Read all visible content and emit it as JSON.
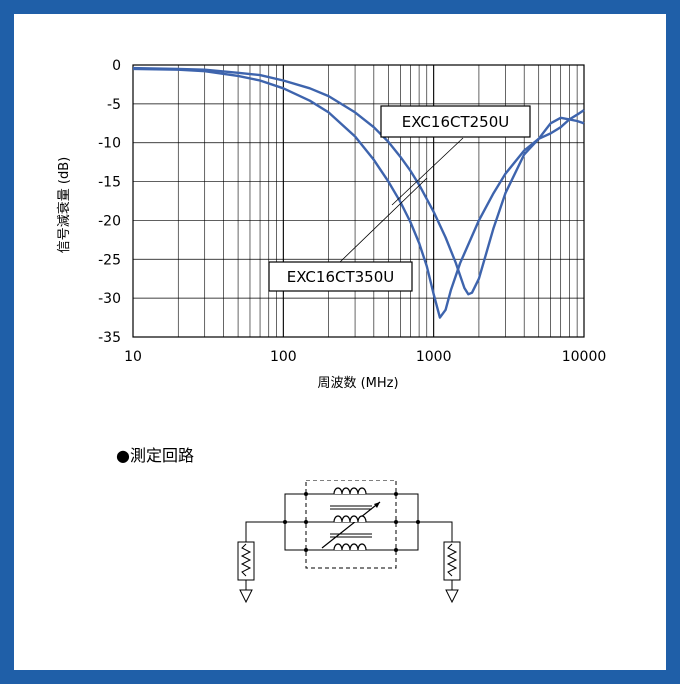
{
  "frame_color": "#1f5fa8",
  "chart_data": {
    "type": "line",
    "title": "",
    "xlabel": "周波数 (MHz)",
    "ylabel": "信号減衰量 (dB)",
    "xscale": "log",
    "xlim": [
      10,
      10000
    ],
    "ylim": [
      -35,
      0
    ],
    "grid": true,
    "x_ticks": [
      "10",
      "100",
      "1000",
      "10000"
    ],
    "y_ticks": [
      "0",
      "-5",
      "-10",
      "-15",
      "-20",
      "-25",
      "-30",
      "-35"
    ],
    "line_color": "#3e64ad",
    "series": [
      {
        "name": "EXC16CT350U",
        "x": [
          10,
          20,
          30,
          50,
          70,
          100,
          150,
          200,
          300,
          400,
          500,
          600,
          700,
          800,
          900,
          1000,
          1100,
          1200,
          1300,
          1500,
          2000,
          2500,
          3000,
          4000,
          5000,
          6000,
          7000,
          8000,
          9000,
          10000
        ],
        "y": [
          -0.5,
          -0.6,
          -0.8,
          -1.4,
          -2.0,
          -3.0,
          -4.6,
          -6.1,
          -9.2,
          -12.2,
          -15.0,
          -17.6,
          -20.2,
          -22.9,
          -25.9,
          -29.5,
          -32.5,
          -31.5,
          -29.0,
          -25.5,
          -20.0,
          -16.5,
          -14.0,
          -11.0,
          -9.5,
          -7.5,
          -6.8,
          -7.0,
          -7.2,
          -7.5
        ]
      },
      {
        "name": "EXC16CT250U",
        "x": [
          10,
          20,
          30,
          50,
          70,
          100,
          150,
          200,
          300,
          400,
          500,
          600,
          700,
          800,
          1000,
          1200,
          1400,
          1600,
          1700,
          1800,
          2000,
          2500,
          3000,
          4000,
          5000,
          6000,
          7000,
          8000,
          9000,
          10000
        ],
        "y": [
          -0.4,
          -0.5,
          -0.6,
          -1.0,
          -1.3,
          -2.0,
          -3.0,
          -4.0,
          -6.1,
          -8.0,
          -9.9,
          -11.8,
          -13.6,
          -15.4,
          -18.9,
          -22.2,
          -25.4,
          -28.7,
          -29.5,
          -29.3,
          -27.5,
          -21.0,
          -16.5,
          -11.5,
          -9.5,
          -8.8,
          -8.0,
          -7.0,
          -6.4,
          -5.8
        ]
      }
    ],
    "annotations": [
      "EXC16CT250U",
      "EXC16CT350U"
    ]
  },
  "circuit": {
    "heading": "●測定回路"
  }
}
